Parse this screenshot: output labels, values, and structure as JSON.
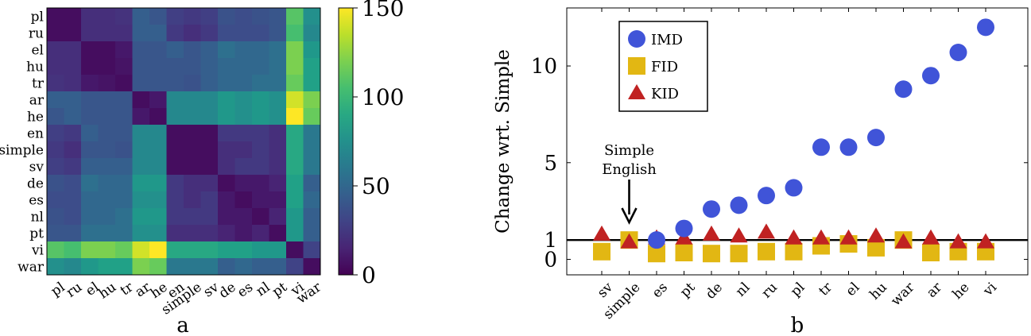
{
  "panel_labels": {
    "a": "a",
    "b": "b"
  },
  "chart_data": [
    {
      "type": "heatmap",
      "title": "",
      "xlabel": "",
      "ylabel": "",
      "rows": [
        "pl",
        "ru",
        "el",
        "hu",
        "tr",
        "ar",
        "he",
        "en",
        "simple",
        "sv",
        "de",
        "es",
        "nl",
        "pt",
        "vi",
        "war"
      ],
      "cols": [
        "pl",
        "ru",
        "el",
        "hu",
        "tr",
        "ar",
        "he",
        "en",
        "simple",
        "sv",
        "de",
        "es",
        "nl",
        "pt",
        "vi",
        "war"
      ],
      "colorbar": {
        "min": 0,
        "max": 150,
        "ticks": [
          0,
          50,
          100,
          150
        ],
        "colormap": "viridis"
      },
      "values": [
        [
          5,
          5,
          20,
          20,
          22,
          45,
          40,
          28,
          25,
          28,
          38,
          35,
          38,
          40,
          110,
          75
        ],
        [
          5,
          5,
          20,
          20,
          20,
          45,
          45,
          25,
          20,
          25,
          35,
          35,
          35,
          40,
          105,
          70
        ],
        [
          20,
          20,
          5,
          5,
          10,
          40,
          40,
          45,
          40,
          45,
          55,
          50,
          50,
          55,
          120,
          80
        ],
        [
          20,
          20,
          5,
          5,
          8,
          40,
          40,
          40,
          40,
          45,
          50,
          50,
          50,
          55,
          120,
          85
        ],
        [
          22,
          20,
          10,
          8,
          5,
          40,
          40,
          40,
          38,
          45,
          50,
          50,
          55,
          55,
          115,
          85
        ],
        [
          45,
          45,
          40,
          40,
          40,
          5,
          10,
          70,
          70,
          70,
          80,
          75,
          80,
          75,
          140,
          120
        ],
        [
          40,
          45,
          40,
          40,
          40,
          10,
          5,
          70,
          70,
          70,
          80,
          75,
          80,
          75,
          150,
          115
        ],
        [
          28,
          25,
          45,
          40,
          40,
          70,
          70,
          5,
          5,
          5,
          25,
          25,
          25,
          20,
          90,
          60
        ],
        [
          25,
          20,
          40,
          40,
          38,
          70,
          70,
          5,
          5,
          5,
          20,
          20,
          25,
          20,
          90,
          60
        ],
        [
          28,
          25,
          45,
          45,
          45,
          70,
          70,
          5,
          5,
          5,
          20,
          25,
          25,
          20,
          90,
          60
        ],
        [
          38,
          35,
          55,
          50,
          50,
          80,
          80,
          25,
          20,
          20,
          5,
          10,
          10,
          15,
          85,
          45
        ],
        [
          35,
          35,
          50,
          50,
          50,
          75,
          75,
          25,
          20,
          25,
          10,
          5,
          10,
          10,
          85,
          50
        ],
        [
          38,
          35,
          50,
          50,
          55,
          80,
          80,
          25,
          25,
          25,
          10,
          10,
          5,
          15,
          80,
          45
        ],
        [
          40,
          40,
          55,
          55,
          55,
          75,
          75,
          20,
          20,
          20,
          15,
          10,
          15,
          5,
          80,
          45
        ],
        [
          110,
          105,
          120,
          120,
          115,
          140,
          150,
          90,
          90,
          90,
          85,
          85,
          80,
          80,
          5,
          30
        ],
        [
          75,
          70,
          80,
          85,
          85,
          120,
          115,
          60,
          60,
          60,
          45,
          50,
          45,
          45,
          30,
          5
        ]
      ]
    },
    {
      "type": "scatter",
      "title": "",
      "xlabel": "",
      "ylabel": "Change wrt. Simple",
      "categories": [
        "sv",
        "simple",
        "es",
        "pt",
        "de",
        "nl",
        "ru",
        "pl",
        "tr",
        "el",
        "hu",
        "war",
        "ar",
        "he",
        "vi"
      ],
      "yticks": [
        0,
        1,
        5,
        10
      ],
      "ylim": [
        -0.8,
        13
      ],
      "reference_line": 1,
      "legend_placement": "top-left",
      "annotation": {
        "lines": [
          "Simple",
          "English"
        ],
        "target_category": "simple"
      },
      "series": [
        {
          "name": "IMD",
          "marker": "circle",
          "color": "#4054d8",
          "values": [
            null,
            null,
            1.0,
            1.6,
            2.6,
            2.8,
            3.3,
            3.7,
            5.8,
            5.8,
            6.3,
            8.8,
            9.5,
            10.7,
            12.0
          ]
        },
        {
          "name": "FID",
          "marker": "square",
          "color": "#e2b713",
          "values": [
            0.4,
            1.0,
            0.3,
            0.35,
            0.3,
            0.3,
            0.4,
            0.4,
            0.7,
            0.8,
            0.6,
            1.0,
            0.35,
            0.4,
            0.4
          ]
        },
        {
          "name": "KID",
          "marker": "triangle",
          "color": "#c02222",
          "values": [
            1.3,
            0.9,
            1.1,
            1.1,
            1.3,
            1.2,
            1.4,
            1.1,
            1.1,
            1.1,
            1.2,
            0.9,
            1.1,
            0.9,
            0.9
          ]
        }
      ]
    }
  ]
}
